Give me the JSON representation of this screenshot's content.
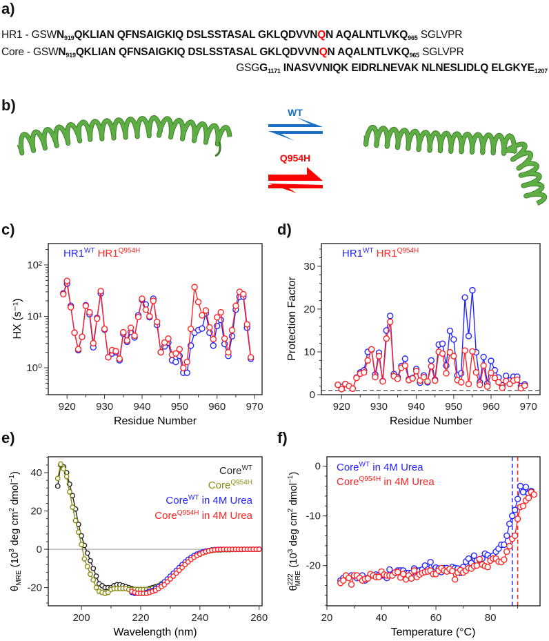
{
  "panel_labels": {
    "a": "a)",
    "b": "b)",
    "c": "c)",
    "d": "d)",
    "e": "e)",
    "f": "f)"
  },
  "sequences": [
    {
      "segments": [
        {
          "t": "HR1 - GSW",
          "s": "n"
        },
        {
          "t": "N",
          "s": "b"
        },
        {
          "t": "919",
          "s": "sub"
        },
        {
          "t": "QKLIAN QFNSAIGKIQ DSLSSTASAL GKLQDVVN",
          "s": "b"
        },
        {
          "t": "Q",
          "s": "r"
        },
        {
          "t": "N AQALNTLVKQ",
          "s": "b"
        },
        {
          "t": "965",
          "s": "sub"
        },
        {
          "t": " SGLVPR",
          "s": "n"
        }
      ]
    },
    {
      "segments": [
        {
          "t": "Core - GSW",
          "s": "n"
        },
        {
          "t": "N",
          "s": "b"
        },
        {
          "t": "919",
          "s": "sub"
        },
        {
          "t": "QKLIAN QFNSAIGKIQ DSLSSTASAL GKLQDVVN",
          "s": "b"
        },
        {
          "t": "Q",
          "s": "r"
        },
        {
          "t": "N AQALNTLVKQ",
          "s": "b"
        },
        {
          "t": "965",
          "s": "sub"
        },
        {
          "t": " SGLVPR",
          "s": "n"
        }
      ]
    },
    {
      "segments": [
        {
          "t": "GSG",
          "s": "n"
        },
        {
          "t": "G",
          "s": "b"
        },
        {
          "t": "1171",
          "s": "sub"
        },
        {
          "t": " INASVVNIQK EIDRLNEVAK NLNESLIDLQ ELGKYE",
          "s": "b"
        },
        {
          "t": "1207",
          "s": "sub"
        }
      ]
    }
  ],
  "panel_b": {
    "wt_label": "WT",
    "mutant_label": "Q954H",
    "colors": {
      "wt": "#1a6fc4",
      "mutant": "#ff0000",
      "helix": "#5fae45",
      "helix_dark": "#3d7f2a"
    }
  },
  "colors": {
    "blue": "#2323ff",
    "red": "#ff2222",
    "black": "#222222",
    "olive": "#8a8a10",
    "grey": "#555555"
  },
  "chart_data": [
    {
      "id": "c",
      "type": "line",
      "yscale": "log",
      "xlabel": "Residue Number",
      "ylabel": "HX (s⁻¹)",
      "xlim": [
        915,
        972
      ],
      "ylim": [
        0.3,
        260
      ],
      "xticks": [
        920,
        930,
        940,
        950,
        960,
        970
      ],
      "yticks": [
        1,
        10,
        100
      ],
      "yticklabels": [
        "10⁰",
        "10¹",
        "10²"
      ],
      "legend": [
        {
          "base": "HR1",
          "sup": "WT",
          "color": "blue"
        },
        {
          "base": "HR1",
          "sup": "Q954H",
          "color": "red"
        }
      ],
      "legend_position": "top-left",
      "x_start": 919,
      "series": [
        {
          "name": "HR1 WT",
          "color": "blue",
          "values": [
            28,
            43,
            16,
            4.8,
            2.2,
            4,
            16.5,
            11,
            2.5,
            9.3,
            28,
            5.5,
            1.6,
            1.9,
            2,
            1.4,
            4.6,
            3.2,
            5,
            3.9,
            10.5,
            21,
            17,
            9.6,
            22,
            6.8,
            2.0,
            2.6,
            3.1,
            1.4,
            1.3,
            1.7,
            0.8,
            0.8,
            2.7,
            4.8,
            5.4,
            5.8,
            11.5,
            4.8,
            2.7,
            6.5,
            8.5,
            2.9,
            1.7,
            4.1,
            13.5,
            24,
            24,
            6,
            1.5
          ]
        },
        {
          "name": "HR1 Q954H",
          "color": "red",
          "values": [
            27,
            49,
            15,
            4.8,
            2.3,
            4,
            16,
            12,
            3,
            9,
            31,
            5.7,
            1.6,
            2.2,
            2.1,
            1.5,
            4.9,
            3.4,
            6,
            4.2,
            9.7,
            22,
            13.5,
            10,
            20,
            7.8,
            2.0,
            3.1,
            3.7,
            1.8,
            1.9,
            2.3,
            1.0,
            1.3,
            5.7,
            37,
            19,
            10.5,
            13,
            6.1,
            3.6,
            9.6,
            12,
            3.7,
            2.0,
            5.4,
            16,
            30,
            27,
            7,
            1.6
          ]
        }
      ]
    },
    {
      "id": "d",
      "type": "line",
      "yscale": "linear",
      "xlabel": "Residue Number",
      "ylabel": "Protection Factor",
      "xlim": [
        914.6,
        973.1
      ],
      "ylim": [
        0,
        35.3
      ],
      "xticks": [
        920,
        930,
        940,
        950,
        960,
        970
      ],
      "yticks": [
        0,
        10,
        20,
        30
      ],
      "yticklabels": [
        "0",
        "10",
        "20",
        "30"
      ],
      "legend": [
        {
          "base": "HR1",
          "sup": "WT",
          "color": "blue"
        },
        {
          "base": "HR1",
          "sup": "Q954H",
          "color": "red"
        }
      ],
      "legend_position": "top-left",
      "hline": {
        "y": 1,
        "style": "dashed",
        "color": "grey"
      },
      "x_start": 919,
      "series": [
        {
          "name": "HR1 WT",
          "color": "blue",
          "values": [
            2.3,
            1.8,
            2.5,
            2,
            1.4,
            4,
            5.2,
            5.7,
            10,
            10.5,
            4.7,
            9.8,
            3.2,
            15,
            18.4,
            4.8,
            4.1,
            6.7,
            8.4,
            3.6,
            3.9,
            6,
            2.8,
            4.5,
            2.9,
            8,
            3.5,
            11.7,
            11.9,
            6.8,
            14.9,
            12.9,
            4.5,
            5,
            22.7,
            13.7,
            24.4,
            9.9,
            2.9,
            8.8,
            2.6,
            7.9,
            5.7,
            4,
            2.2,
            4.4,
            3.3,
            4.2,
            4.2,
            2,
            2.4
          ]
        },
        {
          "name": "HR1 Q954H",
          "color": "red",
          "values": [
            2.3,
            1.3,
            2.5,
            2,
            1.4,
            3.9,
            4.9,
            5.2,
            8,
            10.6,
            4.1,
            9,
            3.1,
            13.1,
            17,
            4.3,
            3.7,
            6.3,
            6.8,
            3.4,
            3.8,
            5.5,
            3.3,
            4.1,
            3.1,
            6.6,
            3.3,
            10,
            9.6,
            5,
            9.9,
            9,
            3.4,
            2.9,
            10.3,
            2.5,
            10.1,
            5.2,
            2.3,
            6.8,
            1.9,
            5.1,
            3.9,
            2.9,
            1.6,
            3.2,
            2.5,
            3.3,
            3.5,
            1.5,
            2.1
          ]
        }
      ]
    },
    {
      "id": "e",
      "type": "line",
      "yscale": "linear",
      "xlabel": "Wavelength (nm)",
      "xlim": [
        188.8,
        261
      ],
      "ylim": [
        -29.5,
        48.3
      ],
      "xticks": [
        200,
        220,
        240,
        260
      ],
      "yticks": [
        -20,
        0,
        20,
        40
      ],
      "yticklabels": [
        "-20",
        "0",
        "20",
        "40"
      ],
      "hline": {
        "y": 0,
        "style": "solid",
        "color": "grey"
      },
      "legend": [
        {
          "base": "Core",
          "sup": "WT",
          "rest": "",
          "color": "black"
        },
        {
          "base": "Core",
          "sup": "Q954H",
          "rest": "",
          "color": "olive"
        },
        {
          "base": "Core",
          "sup": "WT",
          "rest": " in 4M Urea",
          "color": "blue"
        },
        {
          "base": "Core",
          "sup": "Q954H",
          "rest": " in 4M Urea",
          "color": "red"
        }
      ],
      "legend_position": "top-right",
      "series": [
        {
          "name": "Core WT",
          "color": "black",
          "x_start": 192,
          "values": [
            33,
            44,
            43,
            40,
            34,
            28,
            21,
            13,
            7,
            2,
            -2,
            -6,
            -10,
            -14,
            -18,
            -19,
            -20,
            -20,
            -20,
            -19,
            -18.5,
            -18.5,
            -19,
            -19.5,
            -20,
            -20.5,
            -21,
            -21,
            -21,
            -21,
            -21,
            -20.5,
            -20,
            -19.5,
            -19,
            -18,
            -17,
            -16,
            -15,
            -13.5,
            -12,
            -10.5,
            -9,
            -7.5,
            -6.2,
            -5,
            -4,
            -3.2,
            -2.5,
            -1.8,
            -1.3,
            -0.9,
            -0.6,
            -0.4,
            -0.3,
            -0.3,
            -0.2,
            -0.2,
            -0.2,
            -0.1,
            -0.1,
            -0.1,
            -0.1,
            0,
            0,
            0,
            0,
            0,
            0
          ]
        },
        {
          "name": "Core Q954H",
          "color": "olive",
          "x_start": 192,
          "values": [
            37,
            44.5,
            42,
            38,
            30,
            22,
            15,
            9,
            2.5,
            -5,
            -9,
            -13,
            -16,
            -20,
            -22,
            -22.5,
            -23,
            -22.5,
            -21,
            -20.5,
            -20.5,
            -20.5,
            -20.5,
            -20.5,
            -21,
            -21,
            -21,
            -21,
            -21,
            -21,
            -21,
            -21,
            -20.5,
            -20,
            -19,
            -18,
            -17,
            -16,
            -14.8,
            -13.4,
            -12,
            -10.5,
            -9,
            -7.6,
            -6.3,
            -5.1,
            -4.1,
            -3.3,
            -2.6,
            -1.9,
            -1.4,
            -1,
            -0.7,
            -0.4,
            -0.3,
            -0.2,
            -0.2,
            -0.1,
            -0.1,
            -0.1,
            0,
            0,
            0,
            0,
            0,
            0,
            0,
            0,
            0
          ]
        },
        {
          "name": "Core WT in 4M Urea",
          "color": "blue",
          "x_start": 217,
          "values": [
            -22.5,
            -23,
            -23,
            -23,
            -23,
            -22.5,
            -22,
            -21.5,
            -20.5,
            -19.5,
            -18.5,
            -17,
            -15.5,
            -14,
            -12.5,
            -11,
            -9.5,
            -8,
            -6.6,
            -5.3,
            -4.2,
            -3.3,
            -2.5,
            -1.9,
            -1.3,
            -0.9,
            -0.6,
            -0.3,
            -0.1,
            0,
            0,
            0,
            0,
            0,
            0,
            0,
            0,
            0,
            0,
            0,
            0,
            0,
            0,
            0.1
          ]
        },
        {
          "name": "Core Q954H in 4M Urea",
          "color": "red",
          "x_start": 217,
          "values": [
            -22,
            -22.5,
            -23,
            -23,
            -23,
            -23,
            -22.5,
            -22,
            -21.5,
            -20.5,
            -19.5,
            -18.5,
            -17,
            -15.5,
            -14,
            -12.5,
            -11,
            -9.5,
            -8,
            -6.6,
            -5.3,
            -4.2,
            -3.3,
            -2.5,
            -1.8,
            -1.2,
            -0.8,
            -0.5,
            -0.3,
            -0.1,
            -0.1,
            0,
            0,
            0,
            0,
            0,
            0,
            0,
            0,
            0,
            0,
            0,
            0,
            0
          ]
        }
      ]
    },
    {
      "id": "f",
      "type": "line",
      "yscale": "linear",
      "xlabel": "Temperature (°C)",
      "xlim": [
        20,
        98.2
      ],
      "ylim": [
        -28.1,
        1.9
      ],
      "xticks": [
        20,
        40,
        60,
        80
      ],
      "yticks": [
        -20,
        -10,
        0
      ],
      "yticklabels": [
        "-20",
        "-10",
        "0"
      ],
      "vlines": [
        {
          "x": 88,
          "color": "blue"
        },
        {
          "x": 90,
          "color": "red"
        }
      ],
      "legend": [
        {
          "base": "Core",
          "sup": "WT",
          "rest": " in 4M Urea",
          "color": "blue"
        },
        {
          "base": "Core",
          "sup": "Q954H",
          "rest": " in 4M Urea",
          "color": "red"
        }
      ],
      "legend_position": "top-left",
      "series": [
        {
          "name": "Core WT in 4M Urea",
          "color": "blue",
          "x_start": 25,
          "values": [
            -23,
            -22.5,
            -22,
            -22.3,
            -22,
            -22,
            -22.5,
            -22.3,
            -22,
            -23,
            -22.5,
            -22,
            -22,
            -21.8,
            -22,
            -22,
            -22,
            -22.5,
            -20.8,
            -21.8,
            -21.5,
            -21,
            -21,
            -21,
            -21.5,
            -21.5,
            -21.5,
            -20.6,
            -21,
            -21,
            -20.8,
            -20,
            -20.8,
            -19.3,
            -21,
            -20.4,
            -20.6,
            -21.3,
            -20.5,
            -20.5,
            -21,
            -20.3,
            -20.5,
            -20.6,
            -21.5,
            -20.3,
            -19.2,
            -18.6,
            -19.5,
            -18,
            -19,
            -18.8,
            -18.6,
            -17.6,
            -17.9,
            -18.5,
            -18,
            -17.2,
            -16.6,
            -15.8,
            -15.8,
            -14,
            -11.6,
            -10,
            -8.8,
            -6.6,
            -4,
            -5.2,
            -4.2,
            -5.5,
            -5
          ]
        },
        {
          "name": "Core Q954H in 4M Urea",
          "color": "red",
          "x_start": 25,
          "values": [
            -23.5,
            -23,
            -22,
            -22.5,
            -23.8,
            -22,
            -22,
            -22.5,
            -23,
            -22.7,
            -22.6,
            -21.7,
            -22,
            -22.3,
            -22.3,
            -21.2,
            -21.8,
            -22,
            -22,
            -22,
            -21.4,
            -21.3,
            -22.4,
            -21.7,
            -22.8,
            -22,
            -22.6,
            -21,
            -22.3,
            -21.8,
            -21.5,
            -21.3,
            -21.2,
            -21,
            -21.7,
            -21.7,
            -21,
            -20.5,
            -21,
            -21.2,
            -20.7,
            -21.1,
            -22.8,
            -21.4,
            -20.9,
            -21.4,
            -21,
            -20.5,
            -20.6,
            -20.1,
            -20,
            -18.7,
            -19.8,
            -20.1,
            -20.3,
            -19,
            -18.6,
            -18.6,
            -19.2,
            -19.3,
            -18.8,
            -17.2,
            -16.1,
            -14.6,
            -14,
            -10.6,
            -8.2,
            -8,
            -6.9,
            -6.4,
            -5.2,
            -5.7
          ]
        }
      ]
    }
  ],
  "axis_labels": {
    "e_ylabel": {
      "theta": "θ",
      "sub": "MRE",
      "p1": " (10",
      "sup1": "3",
      "p2": " deg cm",
      "sup2": "2",
      "p3": " dmol",
      "sup3": "−1",
      "p4": ")"
    },
    "f_ylabel": {
      "theta": "θ",
      "sup": "222",
      "sub": "MRE",
      "p1": " (10",
      "sup1": "3",
      "p2": " deg cm",
      "sup2": "2",
      "p3": " dmol",
      "sup3": "−1",
      "p4": ")"
    }
  }
}
